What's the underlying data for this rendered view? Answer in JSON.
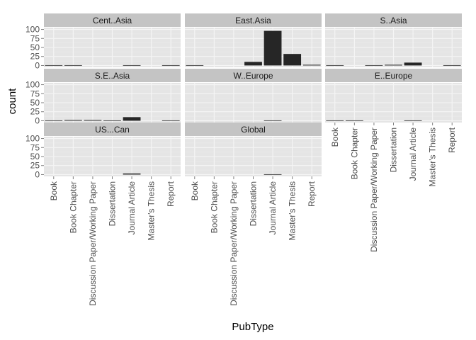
{
  "chart_data": {
    "type": "bar",
    "xlabel": "PubType",
    "ylabel": "count",
    "ylim": [
      0,
      100
    ],
    "yticks": [
      0,
      25,
      50,
      75,
      100
    ],
    "categories": [
      "Book",
      "Book Chapter",
      "Discussion Paper/Working Paper",
      "Dissertation",
      "Journal Article",
      "Master's Thesis",
      "Report"
    ],
    "grid": true,
    "colors": {
      "bar": "#262626",
      "panel_bg": "#e5e5e5",
      "strip_bg": "#c4c4c4",
      "grid_major": "#f5f5f5",
      "grid_minor": "#ebebeb"
    },
    "facets": [
      {
        "label": "Cent..Asia",
        "values": [
          1,
          1,
          0,
          0,
          1,
          0,
          1
        ]
      },
      {
        "label": "East.Asia",
        "values": [
          1,
          0,
          0,
          10,
          96,
          32,
          2
        ]
      },
      {
        "label": "S..Asia",
        "values": [
          1,
          0,
          1,
          2,
          8,
          0,
          1
        ]
      },
      {
        "label": "S.E..Asia",
        "values": [
          1,
          2,
          2,
          1,
          10,
          0,
          1
        ]
      },
      {
        "label": "W..Europe",
        "values": [
          0,
          0,
          0,
          0,
          1,
          0,
          0
        ]
      },
      {
        "label": "E..Europe",
        "values": [
          1,
          1,
          0,
          0,
          1,
          0,
          0
        ]
      },
      {
        "label": "US...Can",
        "values": [
          0,
          0,
          0,
          0,
          3,
          0,
          0
        ]
      },
      {
        "label": "Global",
        "values": [
          0,
          0,
          0,
          0,
          1,
          0,
          0
        ]
      }
    ]
  }
}
